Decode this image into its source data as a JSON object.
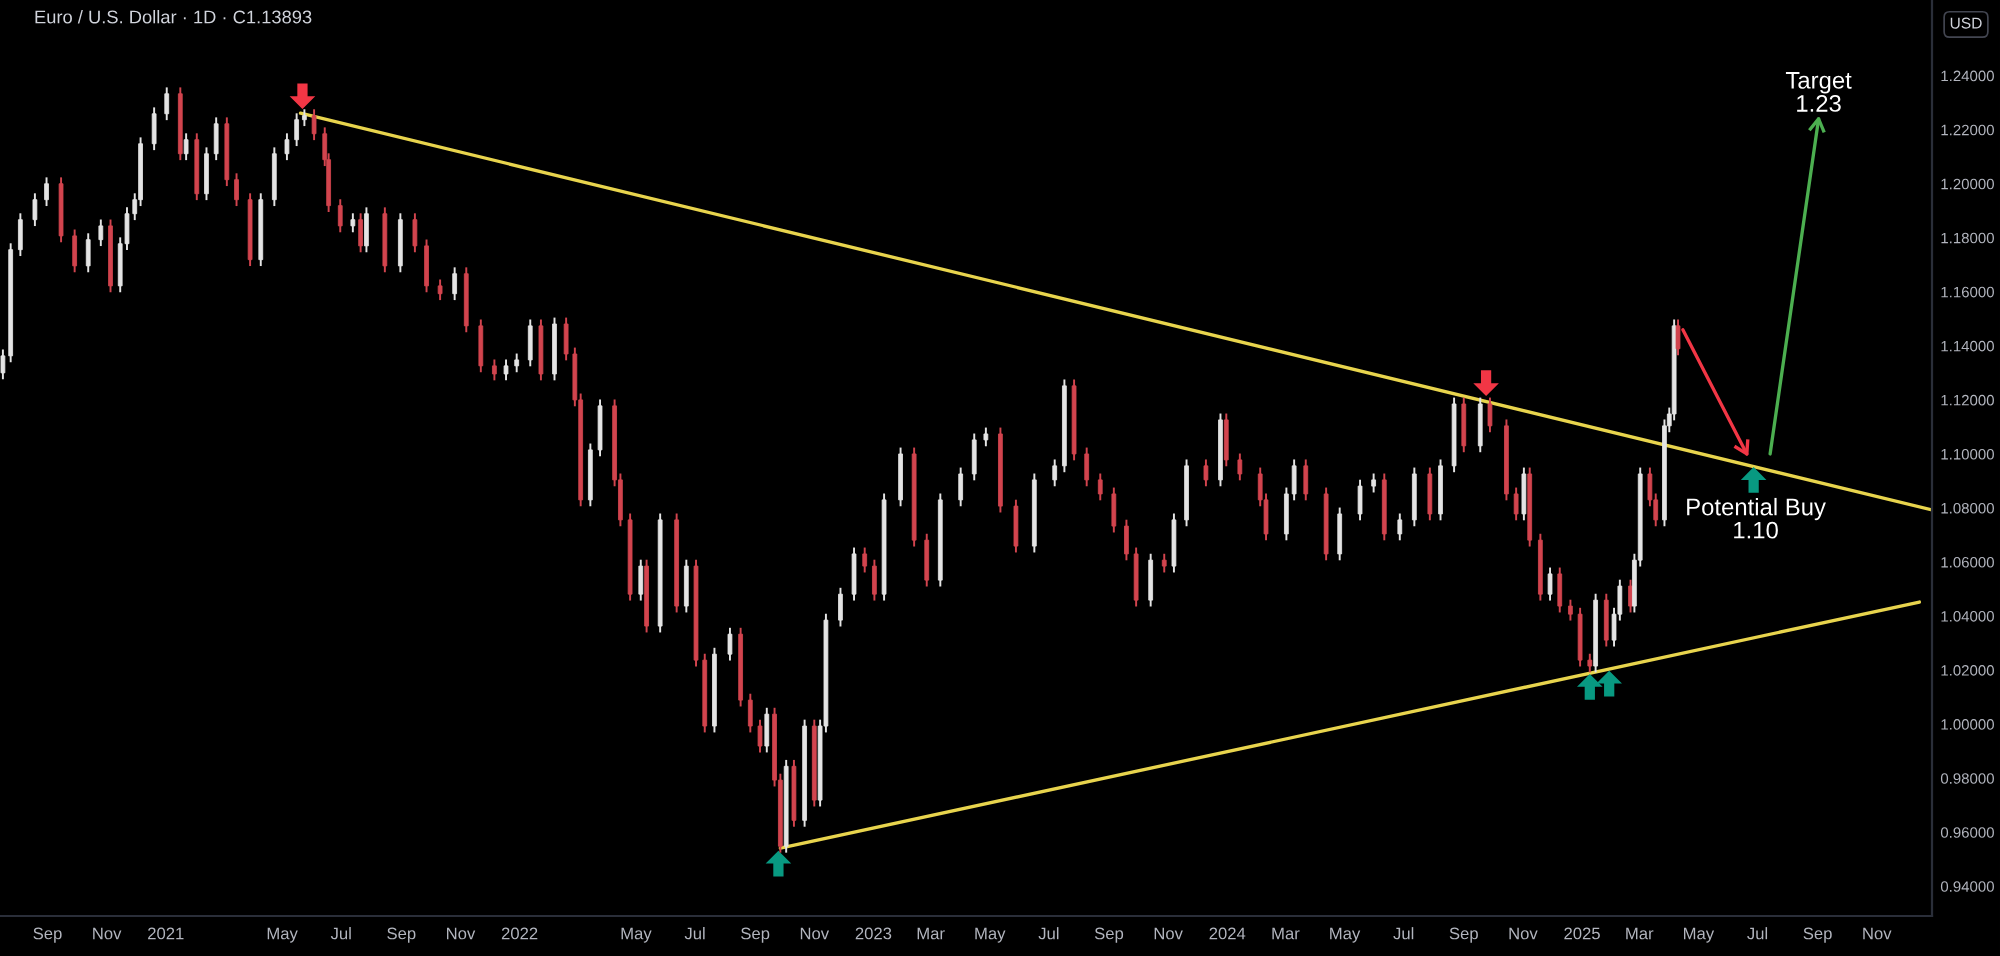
{
  "chart_data": {
    "type": "candlestick",
    "title": "Euro / U.S. Dollar · 1D · C1.13893",
    "annotations": [
      "USD",
      {
        "text": "Target\n1.23",
        "x": "2025-09-02",
        "y": 1.224
      },
      {
        "text": "Potential Buy\n1.10",
        "x": "2025-06-29",
        "y": 1.1
      }
    ],
    "xlim": [
      "2020-07-14",
      "2025-12-28"
    ],
    "ylim": [
      0.929,
      1.268
    ],
    "xticks": [
      {
        "value": "2020-09-01",
        "label": "Sep"
      },
      {
        "value": "2020-11-01",
        "label": "Nov"
      },
      {
        "value": "2021-01-01",
        "label": "2021"
      },
      {
        "value": "2021-05-01",
        "label": "May"
      },
      {
        "value": "2021-07-01",
        "label": "Jul"
      },
      {
        "value": "2021-09-01",
        "label": "Sep"
      },
      {
        "value": "2021-11-01",
        "label": "Nov"
      },
      {
        "value": "2022-01-01",
        "label": "2022"
      },
      {
        "value": "2022-05-01",
        "label": "May"
      },
      {
        "value": "2022-07-01",
        "label": "Jul"
      },
      {
        "value": "2022-09-01",
        "label": "Sep"
      },
      {
        "value": "2022-11-01",
        "label": "Nov"
      },
      {
        "value": "2023-01-01",
        "label": "2023"
      },
      {
        "value": "2023-03-01",
        "label": "Mar"
      },
      {
        "value": "2023-05-01",
        "label": "May"
      },
      {
        "value": "2023-07-01",
        "label": "Jul"
      },
      {
        "value": "2023-09-01",
        "label": "Sep"
      },
      {
        "value": "2023-11-01",
        "label": "Nov"
      },
      {
        "value": "2024-01-01",
        "label": "2024"
      },
      {
        "value": "2024-03-01",
        "label": "Mar"
      },
      {
        "value": "2024-05-01",
        "label": "May"
      },
      {
        "value": "2024-07-01",
        "label": "Jul"
      },
      {
        "value": "2024-09-01",
        "label": "Sep"
      },
      {
        "value": "2024-11-01",
        "label": "Nov"
      },
      {
        "value": "2025-01-01",
        "label": "2025"
      },
      {
        "value": "2025-03-01",
        "label": "Mar"
      },
      {
        "value": "2025-05-01",
        "label": "May"
      },
      {
        "value": "2025-07-01",
        "label": "Jul"
      },
      {
        "value": "2025-09-01",
        "label": "Sep"
      },
      {
        "value": "2025-11-01",
        "label": "Nov"
      }
    ],
    "yticks": [
      {
        "value": 0.94,
        "label": "0.94000"
      },
      {
        "value": 0.96,
        "label": "0.96000"
      },
      {
        "value": 0.98,
        "label": "0.98000"
      },
      {
        "value": 1.0,
        "label": "1.00000"
      },
      {
        "value": 1.02,
        "label": "1.02000"
      },
      {
        "value": 1.04,
        "label": "1.04000"
      },
      {
        "value": 1.06,
        "label": "1.06000"
      },
      {
        "value": 1.08,
        "label": "1.08000"
      },
      {
        "value": 1.1,
        "label": "1.10000"
      },
      {
        "value": 1.12,
        "label": "1.12000"
      },
      {
        "value": 1.14,
        "label": "1.14000"
      },
      {
        "value": 1.16,
        "label": "1.16000"
      },
      {
        "value": 1.18,
        "label": "1.18000"
      },
      {
        "value": 1.2,
        "label": "1.20000"
      },
      {
        "value": 1.22,
        "label": "1.22000"
      },
      {
        "value": 1.24,
        "label": "1.24000"
      }
    ],
    "x": [
      "2020-07-17",
      "2020-07-25",
      "2020-08-04",
      "2020-08-19",
      "2020-08-31",
      "2020-09-15",
      "2020-09-29",
      "2020-10-13",
      "2020-10-26",
      "2020-11-05",
      "2020-11-15",
      "2020-11-22",
      "2020-11-30",
      "2020-12-06",
      "2020-12-20",
      "2021-01-02",
      "2021-01-16",
      "2021-01-22",
      "2021-02-02",
      "2021-02-12",
      "2021-02-22",
      "2021-03-05",
      "2021-03-15",
      "2021-03-29",
      "2021-04-09",
      "2021-04-23",
      "2021-05-06",
      "2021-05-16",
      "2021-05-24",
      "2021-06-03",
      "2021-06-14",
      "2021-06-18",
      "2021-06-30",
      "2021-07-13",
      "2021-07-21",
      "2021-07-27",
      "2021-08-15",
      "2021-08-31",
      "2021-09-15",
      "2021-09-27",
      "2021-10-11",
      "2021-10-26",
      "2021-11-07",
      "2021-11-22",
      "2021-12-06",
      "2021-12-18",
      "2021-12-29",
      "2022-01-12",
      "2022-01-23",
      "2022-02-06",
      "2022-02-18",
      "2022-02-27",
      "2022-03-05",
      "2022-03-15",
      "2022-03-25",
      "2022-04-09",
      "2022-04-15",
      "2022-04-25",
      "2022-05-06",
      "2022-05-12",
      "2022-05-26",
      "2022-06-12",
      "2022-06-22",
      "2022-07-02",
      "2022-07-11",
      "2022-07-21",
      "2022-08-06",
      "2022-08-17",
      "2022-08-27",
      "2022-09-06",
      "2022-09-13",
      "2022-09-21",
      "2022-09-27",
      "2022-10-03",
      "2022-10-11",
      "2022-10-22",
      "2022-11-01",
      "2022-11-07",
      "2022-11-13",
      "2022-11-28",
      "2022-12-12",
      "2022-12-23",
      "2023-01-02",
      "2023-01-12",
      "2023-01-29",
      "2023-02-12",
      "2023-02-25",
      "2023-03-11",
      "2023-04-01",
      "2023-04-15",
      "2023-04-27",
      "2023-05-12",
      "2023-05-28",
      "2023-06-16",
      "2023-07-07",
      "2023-07-17",
      "2023-07-27",
      "2023-08-09",
      "2023-08-23",
      "2023-09-06",
      "2023-09-19",
      "2023-09-29",
      "2023-10-14",
      "2023-10-28",
      "2023-11-07",
      "2023-11-20",
      "2023-12-10",
      "2023-12-25",
      "2023-12-31",
      "2024-01-14",
      "2024-02-04",
      "2024-02-10",
      "2024-03-02",
      "2024-03-10",
      "2024-03-22",
      "2024-04-12",
      "2024-04-26",
      "2024-05-17",
      "2024-05-31",
      "2024-06-11",
      "2024-06-27",
      "2024-07-12",
      "2024-07-28",
      "2024-08-08",
      "2024-08-22",
      "2024-09-01",
      "2024-09-18",
      "2024-09-28",
      "2024-10-15",
      "2024-10-25",
      "2024-11-02",
      "2024-11-08",
      "2024-11-19",
      "2024-11-29",
      "2024-12-09",
      "2024-12-20",
      "2024-12-30",
      "2025-01-09",
      "2025-01-15",
      "2025-01-26",
      "2025-02-03",
      "2025-02-09",
      "2025-02-20",
      "2025-02-24",
      "2025-03-02",
      "2025-03-12",
      "2025-03-18",
      "2025-03-27",
      "2025-04-01",
      "2025-04-06",
      "2025-04-10"
    ],
    "ohlc": [
      [
        1.13,
        1.1383,
        1.128,
        1.1363
      ],
      [
        1.1363,
        1.1776,
        1.1343,
        1.1756
      ],
      [
        1.1756,
        1.1887,
        1.1736,
        1.1867
      ],
      [
        1.1867,
        1.1961,
        1.1847,
        1.1941
      ],
      [
        1.1941,
        1.202,
        1.1921,
        1.2
      ],
      [
        1.2,
        1.202,
        1.1787,
        1.1807
      ],
      [
        1.1807,
        1.1827,
        1.1676,
        1.1696
      ],
      [
        1.1696,
        1.1813,
        1.1676,
        1.1793
      ],
      [
        1.1793,
        1.1864,
        1.1773,
        1.1844
      ],
      [
        1.1844,
        1.1864,
        1.1602,
        1.1622
      ],
      [
        1.1622,
        1.1798,
        1.1602,
        1.1778
      ],
      [
        1.1778,
        1.1909,
        1.1758,
        1.1889
      ],
      [
        1.1889,
        1.1961,
        1.1869,
        1.1941
      ],
      [
        1.1941,
        1.2168,
        1.1921,
        1.2148
      ],
      [
        1.2148,
        1.2279,
        1.2128,
        1.2259
      ],
      [
        1.2259,
        1.2353,
        1.2239,
        1.2333
      ],
      [
        1.2333,
        1.2353,
        1.2091,
        1.2111
      ],
      [
        1.2111,
        1.2183,
        1.2091,
        1.2163
      ],
      [
        1.2163,
        1.2183,
        1.1943,
        1.1963
      ],
      [
        1.1963,
        1.2131,
        1.1943,
        1.2111
      ],
      [
        1.2111,
        1.2242,
        1.2091,
        1.2222
      ],
      [
        1.2222,
        1.2242,
        1.1995,
        1.2015
      ],
      [
        1.2015,
        1.2035,
        1.1921,
        1.1941
      ],
      [
        1.1941,
        1.1961,
        1.1699,
        1.1719
      ],
      [
        1.1719,
        1.1961,
        1.1699,
        1.1941
      ],
      [
        1.1941,
        1.2131,
        1.1921,
        1.2111
      ],
      [
        1.2111,
        1.2183,
        1.2091,
        1.2163
      ],
      [
        1.2163,
        1.2257,
        1.2143,
        1.2237
      ],
      [
        1.2237,
        1.2272,
        1.2217,
        1.2252
      ],
      [
        1.2252,
        1.2272,
        1.2165,
        1.2185
      ],
      [
        1.2185,
        1.2205,
        1.2069,
        1.2089
      ],
      [
        1.2089,
        1.2109,
        1.1899,
        1.1919
      ],
      [
        1.1919,
        1.1939,
        1.1824,
        1.1844
      ],
      [
        1.1844,
        1.1887,
        1.1824,
        1.1867
      ],
      [
        1.1867,
        1.1887,
        1.175,
        1.177
      ],
      [
        1.177,
        1.1909,
        1.175,
        1.1889
      ],
      [
        1.1889,
        1.1909,
        1.1676,
        1.1696
      ],
      [
        1.1696,
        1.1887,
        1.1676,
        1.1867
      ],
      [
        1.1867,
        1.1887,
        1.175,
        1.177
      ],
      [
        1.177,
        1.179,
        1.1602,
        1.1622
      ],
      [
        1.1622,
        1.1642,
        1.1573,
        1.1593
      ],
      [
        1.1593,
        1.1687,
        1.1573,
        1.1667
      ],
      [
        1.1667,
        1.1687,
        1.1454,
        1.1474
      ],
      [
        1.1474,
        1.1494,
        1.1306,
        1.1326
      ],
      [
        1.1326,
        1.1346,
        1.1276,
        1.1296
      ],
      [
        1.1296,
        1.1346,
        1.1276,
        1.1326
      ],
      [
        1.1326,
        1.1368,
        1.1306,
        1.1348
      ],
      [
        1.1348,
        1.1494,
        1.1328,
        1.1474
      ],
      [
        1.1474,
        1.1494,
        1.1276,
        1.1296
      ],
      [
        1.1296,
        1.1501,
        1.1276,
        1.1481
      ],
      [
        1.1481,
        1.1501,
        1.135,
        1.137
      ],
      [
        1.137,
        1.139,
        1.118,
        1.12
      ],
      [
        1.12,
        1.122,
        1.081,
        1.083
      ],
      [
        1.083,
        1.1035,
        1.081,
        1.1015
      ],
      [
        1.1015,
        1.1198,
        1.0995,
        1.1178
      ],
      [
        1.1178,
        1.1198,
        1.0884,
        1.0904
      ],
      [
        1.0904,
        1.0924,
        1.0736,
        1.0756
      ],
      [
        1.0756,
        1.0776,
        1.0461,
        1.0481
      ],
      [
        1.0481,
        1.0605,
        1.0461,
        1.0585
      ],
      [
        1.0585,
        1.0605,
        1.0343,
        1.0363
      ],
      [
        1.0363,
        1.0776,
        1.0343,
        1.0756
      ],
      [
        1.0756,
        1.0776,
        1.0417,
        1.0437
      ],
      [
        1.0437,
        1.0605,
        1.0417,
        1.0585
      ],
      [
        1.0585,
        1.0605,
        1.0217,
        1.0237
      ],
      [
        1.0237,
        1.0257,
        0.9973,
        0.9993
      ],
      [
        0.9993,
        1.0279,
        0.9973,
        1.0259
      ],
      [
        1.0259,
        1.0353,
        1.0239,
        1.0333
      ],
      [
        1.0333,
        1.0353,
        1.0069,
        1.0089
      ],
      [
        1.0089,
        1.0109,
        0.9973,
        0.9993
      ],
      [
        0.9993,
        1.0013,
        0.9899,
        0.9919
      ],
      [
        0.9919,
        1.0057,
        0.9899,
        1.0037
      ],
      [
        1.0037,
        1.0057,
        0.9773,
        0.9793
      ],
      [
        0.9793,
        0.9813,
        0.9528,
        0.9548
      ],
      [
        0.9548,
        0.9864,
        0.9528,
        0.9844
      ],
      [
        0.9844,
        0.9864,
        0.9624,
        0.9644
      ],
      [
        0.9644,
        1.0013,
        0.9624,
        0.9993
      ],
      [
        0.9993,
        1.0013,
        0.9699,
        0.9719
      ],
      [
        0.9719,
        1.0013,
        0.9699,
        0.9993
      ],
      [
        0.9993,
        1.0405,
        0.9973,
        1.0385
      ],
      [
        1.0385,
        1.0501,
        1.0365,
        1.0481
      ],
      [
        1.0481,
        1.065,
        1.0461,
        1.063
      ],
      [
        1.063,
        1.065,
        1.0565,
        1.0585
      ],
      [
        1.0585,
        1.0605,
        1.0461,
        1.0481
      ],
      [
        1.0481,
        1.085,
        1.0461,
        1.083
      ],
      [
        1.083,
        1.102,
        1.081,
        1.1
      ],
      [
        1.1,
        1.102,
        1.0661,
        1.0681
      ],
      [
        1.0681,
        1.0701,
        1.0513,
        1.0533
      ],
      [
        1.0533,
        1.085,
        1.0513,
        1.083
      ],
      [
        1.083,
        1.0946,
        1.081,
        1.0926
      ],
      [
        1.0926,
        1.1072,
        1.0906,
        1.1052
      ],
      [
        1.1052,
        1.1094,
        1.1032,
        1.1074
      ],
      [
        1.1074,
        1.1094,
        1.0787,
        1.0807
      ],
      [
        1.0807,
        1.0827,
        1.0639,
        1.0659
      ],
      [
        1.0659,
        1.0924,
        1.0639,
        1.0904
      ],
      [
        1.0904,
        1.0976,
        1.0884,
        1.0956
      ],
      [
        1.0956,
        1.1272,
        1.0936,
        1.1252
      ],
      [
        1.1252,
        1.1272,
        1.098,
        1.1
      ],
      [
        1.1,
        1.102,
        1.0884,
        1.0904
      ],
      [
        1.0904,
        1.0924,
        1.0832,
        1.0852
      ],
      [
        1.0852,
        1.0872,
        1.0713,
        1.0733
      ],
      [
        1.0733,
        1.0753,
        1.061,
        1.063
      ],
      [
        1.063,
        1.065,
        1.0439,
        1.0459
      ],
      [
        1.0459,
        1.0627,
        1.0439,
        1.0607
      ],
      [
        1.0607,
        1.0627,
        1.0565,
        1.0585
      ],
      [
        1.0585,
        1.0776,
        1.0565,
        1.0756
      ],
      [
        1.0756,
        1.0976,
        1.0736,
        1.0956
      ],
      [
        1.0956,
        1.0976,
        1.0884,
        1.0904
      ],
      [
        1.0904,
        1.1146,
        1.0884,
        1.1126
      ],
      [
        1.1126,
        1.1146,
        1.0958,
        1.0978
      ],
      [
        1.0978,
        1.0998,
        1.0906,
        1.0926
      ],
      [
        1.0926,
        1.0946,
        1.081,
        1.083
      ],
      [
        1.083,
        1.085,
        1.0684,
        1.0704
      ],
      [
        1.0704,
        1.0872,
        1.0684,
        1.0852
      ],
      [
        1.0852,
        1.0976,
        1.0832,
        1.0956
      ],
      [
        1.0956,
        1.0976,
        1.0832,
        1.0852
      ],
      [
        1.0852,
        1.0872,
        1.061,
        1.063
      ],
      [
        1.063,
        1.0798,
        1.061,
        1.0778
      ],
      [
        1.0778,
        1.0901,
        1.0758,
        1.0881
      ],
      [
        1.0881,
        1.0924,
        1.0861,
        1.0904
      ],
      [
        1.0904,
        1.0924,
        1.0684,
        1.0704
      ],
      [
        1.0704,
        1.0776,
        1.0684,
        1.0756
      ],
      [
        1.0756,
        1.0946,
        1.0736,
        1.0926
      ],
      [
        1.0926,
        1.0946,
        1.0758,
        1.0778
      ],
      [
        1.0778,
        1.0976,
        1.0758,
        1.0956
      ],
      [
        1.0956,
        1.1205,
        1.0936,
        1.1185
      ],
      [
        1.1185,
        1.1205,
        1.101,
        1.103
      ],
      [
        1.103,
        1.1205,
        1.101,
        1.1185
      ],
      [
        1.1185,
        1.1205,
        1.1084,
        1.1104
      ],
      [
        1.1104,
        1.1124,
        1.0832,
        1.0852
      ],
      [
        1.0852,
        1.0872,
        1.0758,
        1.0778
      ],
      [
        1.0778,
        1.0946,
        1.0758,
        1.0926
      ],
      [
        1.0926,
        1.0946,
        1.0661,
        1.0681
      ],
      [
        1.0681,
        1.0701,
        1.0461,
        1.0481
      ],
      [
        1.0481,
        1.0576,
        1.0461,
        1.0556
      ],
      [
        1.0556,
        1.0576,
        1.0417,
        1.0437
      ],
      [
        1.0437,
        1.0457,
        1.0387,
        1.0407
      ],
      [
        1.0407,
        1.0427,
        1.0217,
        1.0237
      ],
      [
        1.0237,
        1.0257,
        1.0195,
        1.0215
      ],
      [
        1.0215,
        1.0479,
        1.0195,
        1.0459
      ],
      [
        1.0459,
        1.0479,
        1.0291,
        1.0311
      ],
      [
        1.0311,
        1.0427,
        1.0291,
        1.0407
      ],
      [
        1.0407,
        1.0531,
        1.0387,
        1.0511
      ],
      [
        1.0511,
        1.0531,
        1.0417,
        1.0437
      ],
      [
        1.0437,
        1.0627,
        1.0417,
        1.0607
      ],
      [
        1.0607,
        1.0946,
        1.0587,
        1.0926
      ],
      [
        1.0926,
        1.0946,
        1.081,
        1.083
      ],
      [
        1.083,
        1.085,
        1.0736,
        1.0756
      ],
      [
        1.0756,
        1.1124,
        1.0736,
        1.1104
      ],
      [
        1.1104,
        1.1168,
        1.1084,
        1.1148
      ],
      [
        1.1148,
        1.1494,
        1.1128,
        1.1474
      ],
      [
        1.1474,
        1.1494,
        1.13693,
        1.13893
      ]
    ],
    "series": [
      {
        "type": "line",
        "color": "#e8d44d",
        "x": [
          "2021-05-20",
          "2025-12-28"
        ],
        "values": [
          1.2261,
          1.0793
        ]
      },
      {
        "type": "line",
        "color": "#e8d44d",
        "x": [
          "2022-09-27",
          "2025-12-15"
        ],
        "values": [
          0.9541,
          1.0452
        ]
      },
      {
        "type": "line",
        "color": "#f23645",
        "x": [
          "2025-04-15",
          "2025-06-20"
        ],
        "values": [
          1.146,
          1.1
        ]
      },
      {
        "type": "line",
        "color": "#4caf50",
        "x": [
          "2025-07-14",
          "2025-09-02"
        ],
        "values": [
          1.1,
          1.224
        ]
      },
      {
        "type": "scatter",
        "color": "#f23645",
        "marker": "triangle_down",
        "x": [
          "2021-05-22",
          "2024-09-24"
        ],
        "values": [
          1.2324,
          1.1262
        ]
      },
      {
        "type": "scatter",
        "color": "#089981",
        "marker": "triangle",
        "x": [
          "2022-09-25",
          "2025-01-09",
          "2025-01-29",
          "2025-06-27"
        ],
        "values": [
          0.9484,
          1.0138,
          1.015,
          1.0904
        ]
      }
    ]
  }
}
